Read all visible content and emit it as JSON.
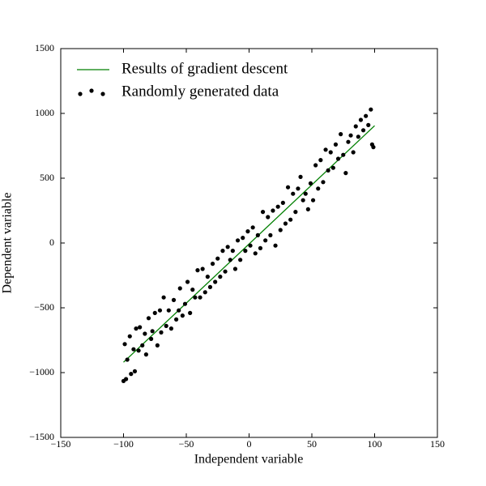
{
  "chart_data": {
    "type": "scatter",
    "xlabel": "Independent variable",
    "ylabel": "Dependent variable",
    "xlim": [
      -150,
      150
    ],
    "xticks": [
      {
        "value": -150,
        "label": "−150"
      },
      {
        "value": -100,
        "label": "−100"
      },
      {
        "value": -50,
        "label": "−50"
      },
      0,
      50,
      100,
      150
    ],
    "ylim": [
      -1500,
      1500
    ],
    "yticks": [
      {
        "value": -1500,
        "label": "−1500"
      },
      {
        "value": -1000,
        "label": "−1000"
      },
      {
        "value": -500,
        "label": "−500"
      },
      0,
      500,
      1000,
      1500
    ],
    "legend": "upper left",
    "series": [
      {
        "name": "Results of gradient descent",
        "type": "line",
        "color": "#007f00",
        "x": [
          -100,
          100
        ],
        "values": [
          -920,
          905
        ]
      },
      {
        "name": "Randomly generated data",
        "type": "scatter",
        "color": "#000000",
        "x": [
          -100,
          -99,
          -98,
          -97,
          -95,
          -94,
          -92,
          -91,
          -90,
          -88,
          -87,
          -85,
          -83,
          -82,
          -80,
          -78,
          -77,
          -75,
          -73,
          -71,
          -70,
          -68,
          -66,
          -64,
          -62,
          -60,
          -58,
          -56,
          -55,
          -53,
          -51,
          -49,
          -47,
          -45,
          -43,
          -41,
          -39,
          -37,
          -35,
          -33,
          -31,
          -29,
          -27,
          -25,
          -23,
          -21,
          -19,
          -17,
          -15,
          -13,
          -11,
          -9,
          -7,
          -5,
          -3,
          -1,
          1,
          3,
          5,
          7,
          9,
          11,
          13,
          15,
          17,
          19,
          21,
          23,
          25,
          27,
          29,
          31,
          33,
          35,
          37,
          39,
          41,
          43,
          45,
          47,
          49,
          51,
          53,
          55,
          57,
          59,
          61,
          63,
          65,
          67,
          69,
          71,
          73,
          75,
          77,
          79,
          81,
          83,
          85,
          87,
          89,
          91,
          93,
          95,
          97,
          98,
          99
        ],
        "values": [
          -1065,
          -780,
          -1050,
          -900,
          -720,
          -1010,
          -820,
          -990,
          -660,
          -830,
          -650,
          -790,
          -700,
          -860,
          -580,
          -740,
          -680,
          -540,
          -790,
          -520,
          -690,
          -420,
          -640,
          -520,
          -660,
          -440,
          -590,
          -520,
          -350,
          -560,
          -470,
          -300,
          -540,
          -360,
          -420,
          -210,
          -420,
          -200,
          -380,
          -260,
          -340,
          -160,
          -300,
          -120,
          -260,
          -60,
          -220,
          -30,
          -130,
          -60,
          -200,
          20,
          -130,
          40,
          -60,
          90,
          -20,
          120,
          -80,
          60,
          -40,
          240,
          20,
          200,
          60,
          250,
          -20,
          280,
          100,
          310,
          150,
          430,
          180,
          380,
          240,
          420,
          510,
          330,
          380,
          260,
          460,
          330,
          600,
          420,
          640,
          470,
          720,
          560,
          700,
          580,
          760,
          650,
          840,
          680,
          540,
          780,
          830,
          700,
          900,
          820,
          950,
          870,
          980,
          910,
          1030,
          760,
          740
        ]
      }
    ]
  }
}
